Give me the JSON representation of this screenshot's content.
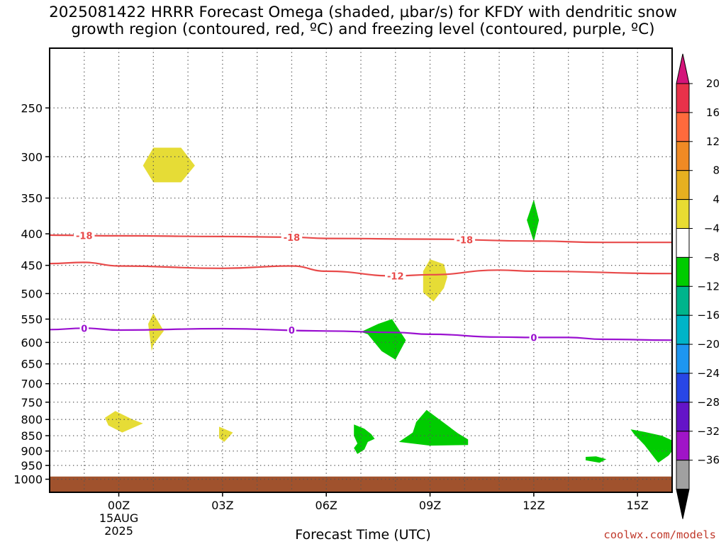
{
  "title_lines": [
    "2025081422 HRRR Forecast Omega (shaded, µbar/s) for KFDY with dendritic snow",
    "growth region (contoured, red, ºC) and freezing level (contoured, purple, ºC)"
  ],
  "credit": "coolwx.com/models",
  "chart_data": {
    "type": "time-height cross section",
    "xlabel": "Forecast Time (UTC)",
    "x_ticks": [
      {
        "h": 0,
        "label": "00Z",
        "sub": [
          "15AUG",
          "2025"
        ]
      },
      {
        "h": 3,
        "label": "03Z"
      },
      {
        "h": 6,
        "label": "06Z"
      },
      {
        "h": 9,
        "label": "09Z"
      },
      {
        "h": 12,
        "label": "12Z"
      },
      {
        "h": 15,
        "label": "15Z"
      }
    ],
    "xlim_hours": [
      -2,
      16
    ],
    "y_axis": "pressure (hPa), inverted",
    "ylim": [
      1050,
      200
    ],
    "y_ticks": [
      250,
      300,
      350,
      400,
      450,
      500,
      550,
      600,
      650,
      700,
      750,
      800,
      850,
      900,
      950,
      1000
    ],
    "grid": true,
    "colorbar": {
      "unit": "µbar/s",
      "labels": [
        "20",
        "16",
        "12",
        "8",
        "4",
        "−4",
        "−8",
        "−12",
        "−16",
        "−20",
        "−24",
        "−28",
        "−32",
        "−36"
      ],
      "colors": [
        "#e8324a",
        "#ff6a3c",
        "#f08a24",
        "#e6b020",
        "#e8dc32",
        "#ffffff",
        "#00cc00",
        "#00b48c",
        "#00b4c8",
        "#1e96f0",
        "#2846e6",
        "#6414c8",
        "#a014c8",
        "#a0a0a0"
      ],
      "top_color": "#d4147a",
      "bottom_color": "#000000"
    },
    "contours": [
      {
        "group": "dendritic",
        "color": "#e84a4a",
        "label": "-18",
        "points": [
          [
            -2,
            402
          ],
          [
            0,
            403
          ],
          [
            3,
            404
          ],
          [
            5,
            405
          ],
          [
            6,
            407
          ],
          [
            9,
            408
          ],
          [
            12,
            411
          ],
          [
            14,
            413
          ],
          [
            16,
            413
          ]
        ],
        "label_hours": [
          -1,
          5,
          10
        ]
      },
      {
        "group": "dendritic",
        "color": "#e84a4a",
        "label": "-12",
        "points": [
          [
            -2,
            447
          ],
          [
            -1,
            445
          ],
          [
            0,
            451
          ],
          [
            3,
            455
          ],
          [
            5,
            451
          ],
          [
            6,
            460
          ],
          [
            8,
            468
          ],
          [
            9,
            466
          ],
          [
            11,
            458
          ],
          [
            12,
            460
          ],
          [
            16,
            464
          ]
        ],
        "label_hours": [
          8
        ]
      },
      {
        "group": "freezing",
        "color": "#9a10d0",
        "label": "0",
        "points": [
          [
            -2,
            572
          ],
          [
            -1,
            569
          ],
          [
            0,
            573
          ],
          [
            3,
            570
          ],
          [
            6,
            575
          ],
          [
            8,
            578
          ],
          [
            9,
            582
          ],
          [
            11,
            588
          ],
          [
            12,
            589
          ],
          [
            13,
            589
          ],
          [
            14,
            593
          ],
          [
            16,
            595
          ]
        ],
        "label_hours": [
          -1,
          5,
          12
        ]
      }
    ],
    "shaded_regions": [
      {
        "color": "#e6dc36",
        "points": [
          [
            0.7,
            310
          ],
          [
            1.0,
            290
          ],
          [
            1.8,
            290
          ],
          [
            2.2,
            310
          ],
          [
            1.8,
            330
          ],
          [
            1.0,
            330
          ]
        ]
      },
      {
        "color": "#e6dc36",
        "points": [
          [
            9.0,
            440
          ],
          [
            9.4,
            448
          ],
          [
            9.5,
            470
          ],
          [
            9.4,
            490
          ],
          [
            9.1,
            515
          ],
          [
            8.8,
            498
          ],
          [
            8.8,
            460
          ]
        ]
      },
      {
        "color": "#e6dc36",
        "points": [
          [
            1.0,
            538
          ],
          [
            1.3,
            575
          ],
          [
            1.0,
            605
          ],
          [
            0.95,
            620
          ],
          [
            0.9,
            590
          ],
          [
            0.85,
            560
          ]
        ]
      },
      {
        "color": "#e6dc36",
        "points": [
          [
            -0.1,
            775
          ],
          [
            0.4,
            800
          ],
          [
            0.7,
            812
          ],
          [
            0.1,
            840
          ],
          [
            -0.3,
            818
          ],
          [
            -0.4,
            795
          ]
        ]
      },
      {
        "color": "#e6dc36",
        "points": [
          [
            2.9,
            822
          ],
          [
            3.3,
            840
          ],
          [
            3.05,
            870
          ],
          [
            2.9,
            858
          ]
        ]
      },
      {
        "color": "#00cc00",
        "points": [
          [
            7.9,
            550
          ],
          [
            8.3,
            595
          ],
          [
            8.0,
            640
          ],
          [
            7.6,
            620
          ],
          [
            7.2,
            582
          ],
          [
            7.0,
            577
          ],
          [
            7.5,
            560
          ]
        ]
      },
      {
        "color": "#00cc00",
        "points": [
          [
            12.0,
            352
          ],
          [
            12.15,
            380
          ],
          [
            12.0,
            412
          ],
          [
            11.8,
            380
          ]
        ]
      },
      {
        "color": "#00cc00",
        "points": [
          [
            6.8,
            815
          ],
          [
            7.1,
            828
          ],
          [
            7.3,
            845
          ],
          [
            7.4,
            860
          ],
          [
            7.2,
            870
          ],
          [
            7.1,
            895
          ],
          [
            6.9,
            910
          ],
          [
            6.8,
            890
          ],
          [
            6.9,
            875
          ],
          [
            6.8,
            850
          ]
        ]
      },
      {
        "color": "#00cc00",
        "points": [
          [
            8.9,
            772
          ],
          [
            9.4,
            810
          ],
          [
            9.8,
            842
          ],
          [
            10.1,
            862
          ],
          [
            10.1,
            880
          ],
          [
            9.0,
            882
          ],
          [
            8.1,
            870
          ],
          [
            8.5,
            840
          ],
          [
            8.6,
            808
          ]
        ]
      },
      {
        "color": "#00cc00",
        "points": [
          [
            14.8,
            830
          ],
          [
            15.2,
            838
          ],
          [
            15.7,
            850
          ],
          [
            16.0,
            865
          ],
          [
            16.0,
            900
          ],
          [
            15.9,
            915
          ],
          [
            15.6,
            940
          ],
          [
            15.5,
            925
          ],
          [
            15.2,
            880
          ],
          [
            14.9,
            845
          ]
        ]
      },
      {
        "color": "#00cc00",
        "points": [
          [
            13.5,
            920
          ],
          [
            13.8,
            918
          ],
          [
            14.1,
            928
          ],
          [
            13.9,
            940
          ],
          [
            13.5,
            932
          ]
        ]
      }
    ],
    "terrain": {
      "color": "#a0522d",
      "top_hpa": 990
    }
  }
}
